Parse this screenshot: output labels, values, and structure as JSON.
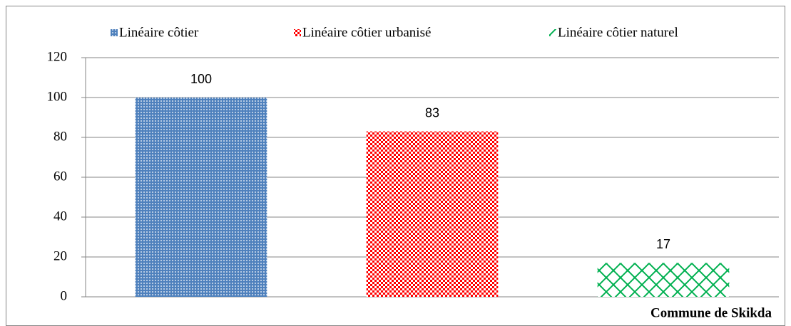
{
  "chart_data": {
    "type": "bar",
    "categories": [
      "Commune de Skikda"
    ],
    "series": [
      {
        "name": "Linéaire côtier",
        "color": "#4f81bd",
        "values": [
          100
        ]
      },
      {
        "name": "Linéaire côtier urbanisé",
        "color": "#ff0000",
        "values": [
          83
        ]
      },
      {
        "name": "Linéaire côtier naturel",
        "color": "#00b050",
        "values": [
          17
        ]
      }
    ],
    "ylim": [
      0,
      120
    ],
    "yticks": [
      0,
      20,
      40,
      60,
      80,
      100,
      120
    ],
    "grid": true,
    "legend": "top"
  }
}
